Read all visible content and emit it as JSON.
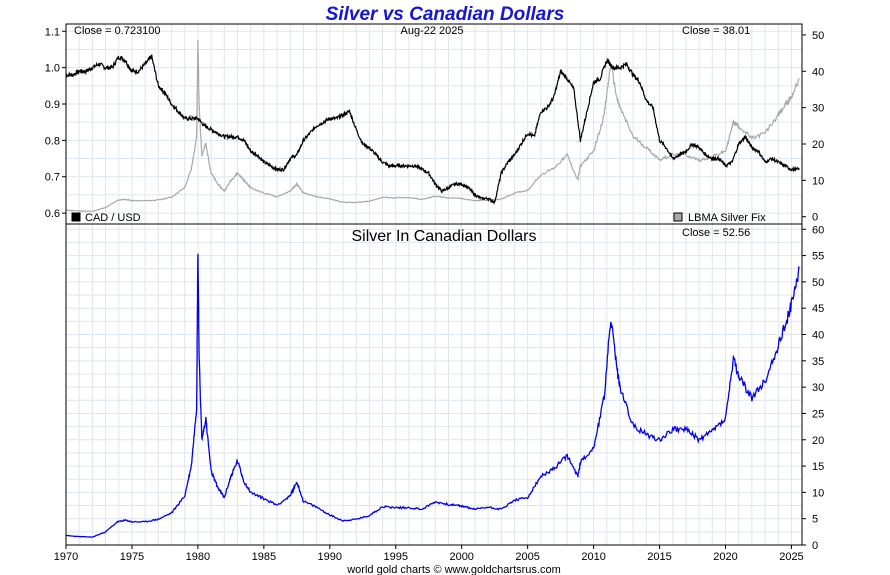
{
  "chart_data": [
    {
      "type": "line",
      "title": "Silver vs Canadian Dollars",
      "date_label": "Aug-22  2025",
      "x_ticks": [
        "1970",
        "1975",
        "1980",
        "1985",
        "1990",
        "1995",
        "2000",
        "2005",
        "2010",
        "2015",
        "2020",
        "2025"
      ],
      "xlim": [
        1970,
        2025.8
      ],
      "series": [
        {
          "name": "CAD / USD",
          "axis": "left",
          "color": "#000000",
          "close_label": "Close = 0.723100",
          "ylim": [
            0.57,
            1.12
          ],
          "y_ticks": [
            "0.6",
            "0.7",
            "0.8",
            "0.9",
            "1.0",
            "1.1"
          ],
          "x": [
            1970,
            1970.5,
            1971,
            1971.5,
            1972,
            1972.5,
            1973,
            1973.5,
            1974,
            1974.5,
            1975,
            1975.5,
            1976,
            1976.5,
            1977,
            1977.5,
            1978,
            1978.5,
            1979,
            1979.5,
            1980,
            1980.5,
            1981,
            1981.5,
            1982,
            1982.5,
            1983,
            1983.5,
            1984,
            1984.5,
            1985,
            1985.5,
            1986,
            1986.5,
            1987,
            1987.5,
            1988,
            1988.5,
            1989,
            1989.5,
            1990,
            1990.5,
            1991,
            1991.5,
            1992,
            1992.5,
            1993,
            1993.5,
            1994,
            1994.5,
            1995,
            1995.5,
            1996,
            1996.5,
            1997,
            1997.5,
            1998,
            1998.5,
            1999,
            1999.5,
            2000,
            2000.5,
            2001,
            2001.5,
            2002,
            2002.5,
            2003,
            2003.5,
            2004,
            2004.5,
            2005,
            2005.5,
            2006,
            2006.5,
            2007,
            2007.5,
            2008,
            2008.5,
            2009,
            2009.5,
            2010,
            2010.5,
            2011,
            2011.5,
            2012,
            2012.5,
            2013,
            2013.5,
            2014,
            2014.5,
            2015,
            2015.5,
            2016,
            2016.5,
            2017,
            2017.5,
            2018,
            2018.5,
            2019,
            2019.5,
            2020,
            2020.5,
            2021,
            2021.5,
            2022,
            2022.5,
            2023,
            2023.5,
            2024,
            2024.5,
            2025,
            2025.6
          ],
          "values": [
            0.98,
            0.98,
            0.99,
            0.99,
            1.0,
            1.01,
            1.0,
            1.0,
            1.03,
            1.02,
            0.99,
            0.99,
            1.01,
            1.03,
            0.95,
            0.93,
            0.9,
            0.88,
            0.86,
            0.86,
            0.86,
            0.84,
            0.83,
            0.82,
            0.81,
            0.81,
            0.81,
            0.8,
            0.77,
            0.76,
            0.74,
            0.73,
            0.72,
            0.72,
            0.75,
            0.76,
            0.8,
            0.82,
            0.84,
            0.85,
            0.86,
            0.86,
            0.87,
            0.88,
            0.83,
            0.79,
            0.78,
            0.76,
            0.74,
            0.73,
            0.73,
            0.73,
            0.73,
            0.73,
            0.72,
            0.71,
            0.68,
            0.66,
            0.67,
            0.68,
            0.68,
            0.67,
            0.65,
            0.64,
            0.64,
            0.63,
            0.71,
            0.74,
            0.76,
            0.79,
            0.82,
            0.81,
            0.88,
            0.89,
            0.92,
            0.99,
            0.97,
            0.94,
            0.8,
            0.88,
            0.96,
            0.97,
            1.02,
            1.0,
            1.0,
            1.01,
            0.98,
            0.96,
            0.91,
            0.89,
            0.8,
            0.78,
            0.75,
            0.76,
            0.77,
            0.79,
            0.78,
            0.76,
            0.75,
            0.75,
            0.73,
            0.74,
            0.79,
            0.81,
            0.78,
            0.77,
            0.74,
            0.75,
            0.74,
            0.73,
            0.72,
            0.72
          ],
          "legend": "bottom-left"
        },
        {
          "name": "LBMA Silver Fix",
          "axis": "right",
          "color": "#a9a9a9",
          "close_label": "Close = 38.01",
          "ylim": [
            -2,
            53
          ],
          "y_ticks": [
            "0",
            "10",
            "20",
            "30",
            "40",
            "50"
          ],
          "x": [
            1970,
            1971,
            1972,
            1973,
            1973.9,
            1974.5,
            1975,
            1976,
            1977,
            1978,
            1979,
            1979.5,
            1979.9,
            1980.0,
            1980.1,
            1980.3,
            1980.6,
            1981,
            1981.5,
            1982,
            1982.5,
            1983,
            1983.5,
            1984,
            1985,
            1986,
            1987,
            1987.5,
            1988,
            1989,
            1990,
            1991,
            1992,
            1993,
            1994,
            1995,
            1996,
            1997,
            1998,
            1999,
            2000,
            2001,
            2002,
            2003,
            2004,
            2005,
            2006,
            2007,
            2008,
            2008.8,
            2009,
            2010,
            2010.8,
            2011.3,
            2011.8,
            2012,
            2013,
            2014,
            2015,
            2016,
            2017,
            2018,
            2019,
            2020,
            2020.6,
            2021,
            2022,
            2023,
            2024,
            2024.8,
            2025,
            2025.6
          ],
          "values": [
            1.8,
            1.6,
            1.5,
            2.5,
            4.5,
            4.8,
            4.4,
            4.4,
            4.6,
            5.4,
            8.0,
            13,
            22,
            48,
            30,
            17,
            20,
            12,
            9,
            7,
            10,
            12,
            10,
            8,
            6.5,
            5.5,
            7,
            9,
            6.5,
            5.5,
            4.9,
            4.0,
            3.9,
            4.3,
            5.3,
            5.2,
            5.2,
            4.8,
            5.6,
            5.2,
            5.0,
            4.4,
            4.6,
            4.8,
            6.5,
            7.3,
            11.5,
            13.4,
            17,
            10,
            14,
            18,
            28,
            42,
            32,
            30,
            22,
            19,
            15.7,
            17,
            17,
            15.5,
            16.5,
            18,
            26,
            25,
            21.5,
            23,
            28,
            32,
            33,
            38.0
          ],
          "legend": "bottom-right"
        }
      ]
    },
    {
      "type": "line",
      "title": "Silver In Canadian Dollars",
      "close_label": "Close = 52.56",
      "x_ticks": [
        "1970",
        "1975",
        "1980",
        "1985",
        "1990",
        "1995",
        "2000",
        "2005",
        "2010",
        "2015",
        "2020",
        "2025"
      ],
      "xlim": [
        1970,
        2025.8
      ],
      "ylim": [
        0,
        61
      ],
      "y_ticks": [
        "0",
        "5",
        "10",
        "15",
        "20",
        "25",
        "30",
        "35",
        "40",
        "45",
        "50",
        "55",
        "60"
      ],
      "series": [
        {
          "name": "",
          "color": "#0000ee",
          "x": [
            1970,
            1971,
            1972,
            1973,
            1973.9,
            1974.5,
            1975,
            1976,
            1977,
            1978,
            1979,
            1979.5,
            1979.9,
            1980.0,
            1980.1,
            1980.3,
            1980.6,
            1981,
            1981.5,
            1982,
            1982.5,
            1983,
            1983.5,
            1984,
            1985,
            1986,
            1987,
            1987.5,
            1988,
            1989,
            1990,
            1991,
            1992,
            1993,
            1994,
            1995,
            1996,
            1997,
            1998,
            1999,
            2000,
            2001,
            2002,
            2003,
            2004,
            2005,
            2006,
            2007,
            2008,
            2008.8,
            2009,
            2010,
            2010.8,
            2011.3,
            2011.8,
            2012,
            2013,
            2014,
            2015,
            2016,
            2017,
            2018,
            2019,
            2020,
            2020.6,
            2021,
            2022,
            2023,
            2024,
            2024.8,
            2025,
            2025.6
          ],
          "values": [
            1.8,
            1.6,
            1.5,
            2.5,
            4.4,
            4.7,
            4.4,
            4.4,
            4.9,
            6.1,
            9.3,
            15,
            26,
            56,
            35,
            20,
            24,
            14,
            11,
            9,
            13,
            16,
            12,
            10,
            8.8,
            7.6,
            9.3,
            12,
            8.3,
            7.2,
            5.7,
            4.6,
            4.9,
            5.6,
            7.3,
            7.1,
            7.1,
            6.8,
            8.2,
            7.7,
            7.4,
            6.8,
            7.2,
            6.8,
            8.5,
            9.0,
            13,
            14.5,
            17,
            13,
            15.7,
            18.5,
            28,
            43,
            33,
            30,
            22.6,
            21,
            20,
            22,
            22,
            20,
            21.7,
            24,
            35.3,
            32,
            28,
            31,
            38,
            44,
            45.6,
            52.6
          ]
        }
      ]
    }
  ],
  "footer": "world gold charts © www.goldchartsrus.com"
}
